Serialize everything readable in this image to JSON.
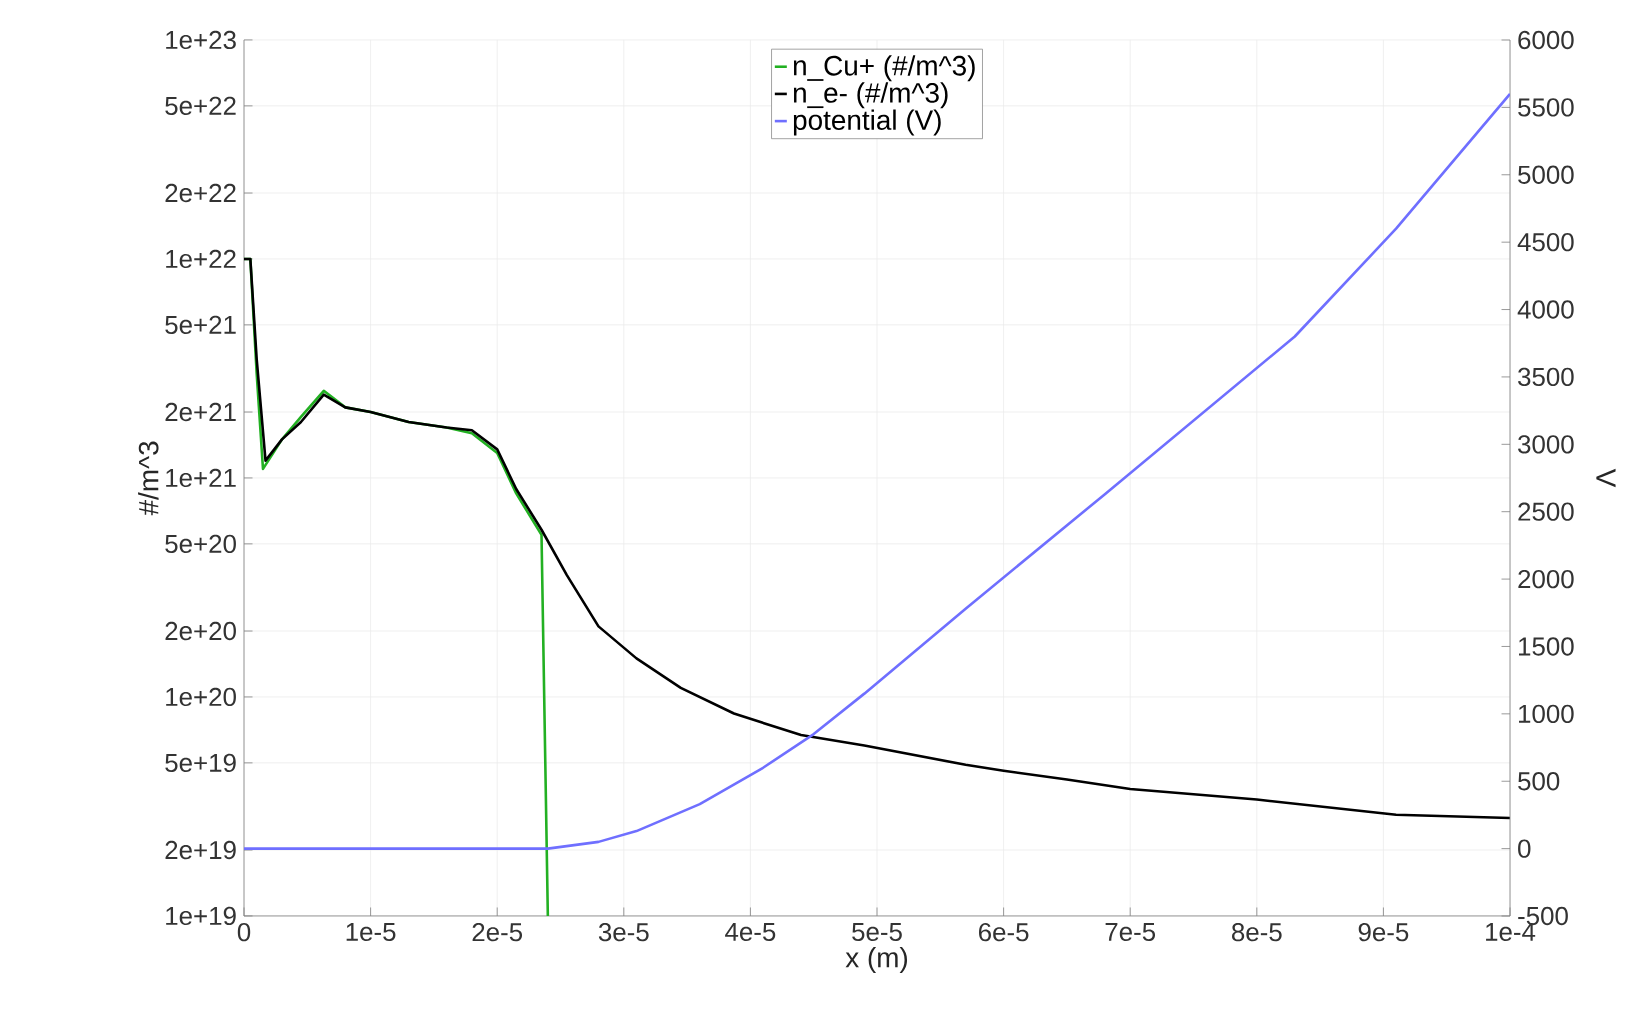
{
  "chart_data": {
    "type": "line",
    "xlabel": "x (m)",
    "ylabel": "#/m^3",
    "y2label": "V",
    "log": "y",
    "grid": true,
    "legend": "top",
    "xlim": [
      0,
      0.0001
    ],
    "xticks": [
      0,
      {
        "value": 1e-05,
        "label": "1e-5"
      },
      {
        "value": 2e-05,
        "label": "2e-5"
      },
      {
        "value": 3e-05,
        "label": "3e-5"
      },
      {
        "value": 4e-05,
        "label": "4e-5"
      },
      {
        "value": 5e-05,
        "label": "5e-5"
      },
      {
        "value": 6e-05,
        "label": "6e-5"
      },
      {
        "value": 7e-05,
        "label": "7e-5"
      },
      {
        "value": 8e-05,
        "label": "8e-5"
      },
      {
        "value": 9e-05,
        "label": "9e-5"
      },
      {
        "value": 0.0001,
        "label": "1e-4"
      }
    ],
    "ylim": [
      1e+19,
      1e+23
    ],
    "yticks": [
      {
        "value": 1e+19,
        "label": "1e+19"
      },
      {
        "value": 2e+19,
        "label": "2e+19"
      },
      {
        "value": 5e+19,
        "label": "5e+19"
      },
      {
        "value": 1e+20,
        "label": "1e+20"
      },
      {
        "value": 2e+20,
        "label": "2e+20"
      },
      {
        "value": 5e+20,
        "label": "5e+20"
      },
      {
        "value": 1e+21,
        "label": "1e+21"
      },
      {
        "value": 2e+21,
        "label": "2e+21"
      },
      {
        "value": 5e+21,
        "label": "5e+21"
      },
      {
        "value": 1e+22,
        "label": "1e+22"
      },
      {
        "value": 2e+22,
        "label": "2e+22"
      },
      {
        "value": 5e+22,
        "label": "5e+22"
      },
      {
        "value": 1e+23,
        "label": "1e+23"
      }
    ],
    "y2lim": [
      -500,
      6000
    ],
    "y2ticks": [
      -500,
      0,
      500,
      1000,
      1500,
      2000,
      2500,
      3000,
      3500,
      4000,
      4500,
      5000,
      5500,
      6000
    ],
    "series": [
      {
        "name": "n_Cu+ (#/m^3)",
        "color": "#22b022",
        "x": [
          0,
          5e-07,
          1e-06,
          1.5e-06,
          3e-06,
          4.5e-06,
          6.3e-06,
          8e-06,
          1e-05,
          1.3e-05,
          1.6e-05,
          1.8e-05,
          2e-05,
          2.15e-05,
          2.35e-05,
          2.4e-05
        ],
        "values": [
          1e+22,
          1e+22,
          3e+21,
          1.1e+21,
          1.5e+21,
          1.9e+21,
          2.5e+21,
          2.1e+21,
          2e+21,
          1.8e+21,
          1.7e+21,
          1.6e+21,
          1.3e+21,
          8.5e+20,
          5.5e+20,
          1e+19
        ]
      },
      {
        "name": "n_e- (#/m^3)",
        "color": "#000000",
        "x": [
          0,
          5e-07,
          1e-06,
          1.7e-06,
          3e-06,
          4.5e-06,
          6.3e-06,
          8e-06,
          1e-05,
          1.3e-05,
          1.6e-05,
          1.8e-05,
          2e-05,
          2.15e-05,
          2.35e-05,
          2.55e-05,
          2.8e-05,
          3.1e-05,
          3.45e-05,
          3.87e-05,
          4.4e-05,
          4.9e-05,
          5.7e-05,
          6e-05,
          6.5e-05,
          7e-05,
          8e-05,
          9.1e-05,
          0.0001
        ],
        "values": [
          1e+22,
          1e+22,
          3.5e+21,
          1.2e+21,
          1.5e+21,
          1.8e+21,
          2.4e+21,
          2.1e+21,
          2e+21,
          1.8e+21,
          1.7e+21,
          1.65e+21,
          1.35e+21,
          8.9e+20,
          5.8e+20,
          3.6e+20,
          2.1e+20,
          1.5e+20,
          1.1e+20,
          8.4e+19,
          6.7e+19,
          6e+19,
          4.9e+19,
          4.6e+19,
          4.2e+19,
          3.8e+19,
          3.4e+19,
          2.9e+19,
          2.8e+19
        ]
      },
      {
        "name": "potential (V)",
        "color": "#6f6fff",
        "axis": "y2",
        "x": [
          0,
          1e-05,
          2e-05,
          2.4e-05,
          2.8e-05,
          3.1e-05,
          3.6e-05,
          4.1e-05,
          4.5e-05,
          4.9e-05,
          5.7e-05,
          6.8e-05,
          8.3e-05,
          9.1e-05,
          0.0001
        ],
        "values": [
          0,
          0,
          0,
          0,
          50,
          130,
          330,
          600,
          850,
          1150,
          1780,
          2630,
          3800,
          4600,
          5600
        ]
      }
    ]
  }
}
